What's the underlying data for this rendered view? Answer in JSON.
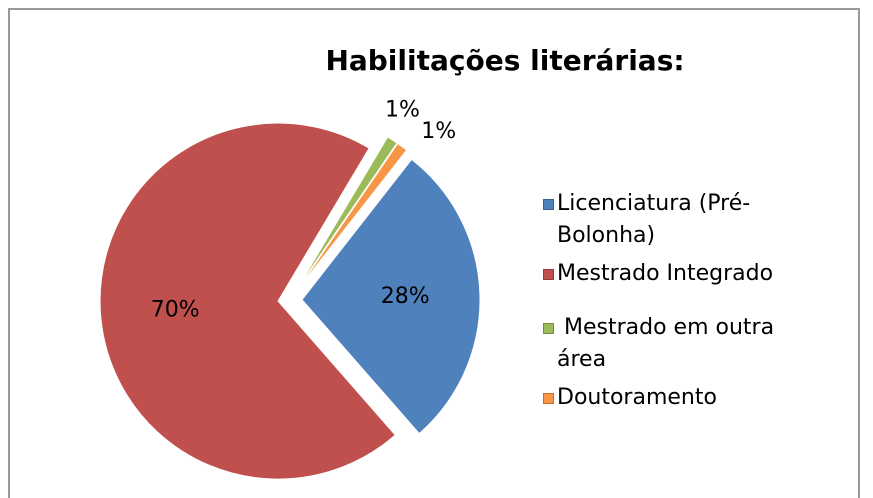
{
  "chart_data": {
    "type": "pie",
    "title": "Habilitações literárias:",
    "categories": [
      "Licenciatura (Pré-Bolonha)",
      "Mestrado Integrado",
      " Mestrado em outra área",
      "Doutoramento"
    ],
    "values": [
      28,
      70,
      1,
      1
    ],
    "value_labels": [
      "28%",
      "70%",
      "1%",
      "1%"
    ],
    "colors": [
      "#4f81bd",
      "#c0504d",
      "#9bbb59",
      "#f79646"
    ],
    "legend": "right"
  }
}
